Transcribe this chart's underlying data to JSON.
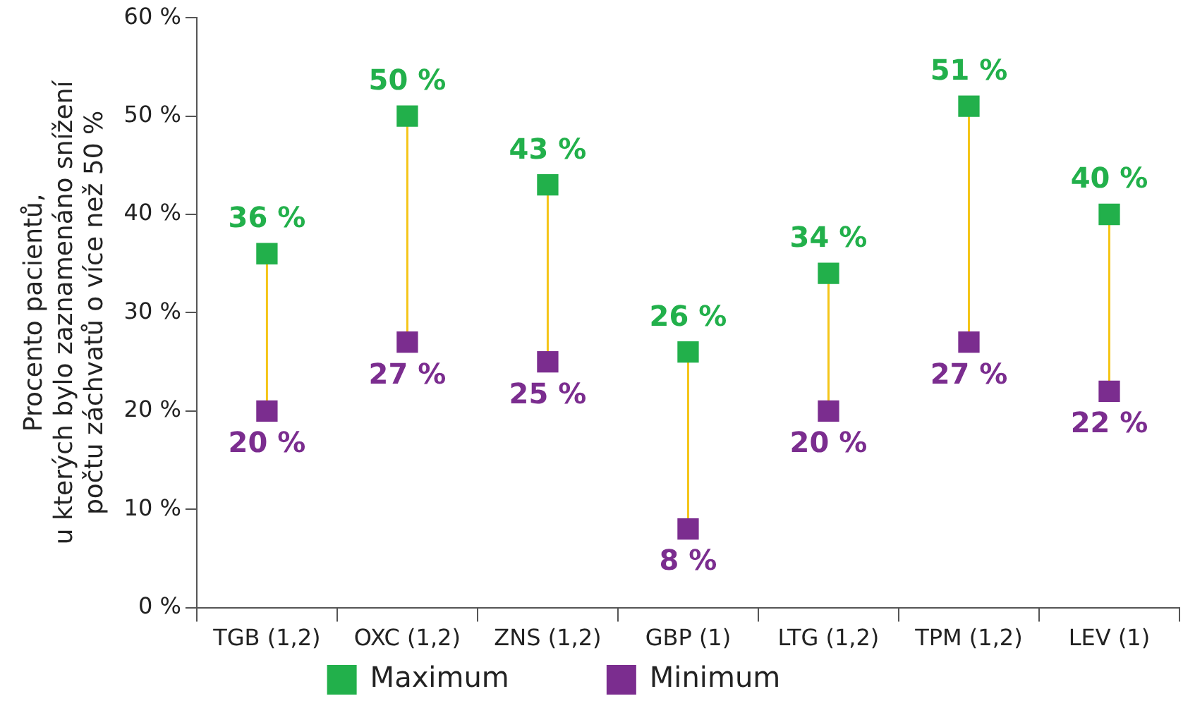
{
  "chart_data": {
    "type": "scatter",
    "ylabel": "Procento pacientů,\nu kterých bylo zaznamenáno snížení\npočtu záchvatů o více než 50 %",
    "categories": [
      "TGB (1,2)",
      "OXC (1,2)",
      "ZNS (1,2)",
      "GBP (1)",
      "LTG (1,2)",
      "TPM (1,2)",
      "LEV (1)"
    ],
    "series": [
      {
        "name": "Maximum",
        "color": "#22b04b",
        "x": [
          "TGB (1,2)",
          "OXC (1,2)",
          "ZNS (1,2)",
          "GBP (1)",
          "LTG (1,2)",
          "TPM (1,2)",
          "LEV (1)"
        ],
        "values": [
          36,
          50,
          43,
          26,
          34,
          51,
          40
        ],
        "value_labels": [
          "36 %",
          "50 %",
          "43 %",
          "26 %",
          "34 %",
          "51 %",
          "40 %"
        ]
      },
      {
        "name": "Minimum",
        "color": "#7b2d8f",
        "x": [
          "TGB (1,2)",
          "OXC (1,2)",
          "ZNS (1,2)",
          "GBP (1)",
          "LTG (1,2)",
          "TPM (1,2)",
          "LEV (1)"
        ],
        "values": [
          20,
          27,
          25,
          8,
          20,
          27,
          22
        ],
        "value_labels": [
          "20 %",
          "27 %",
          "25 %",
          "8 %",
          "20 %",
          "27 %",
          "22 %"
        ]
      }
    ],
    "ylim": [
      0,
      60
    ],
    "yticks": [
      {
        "value": 0,
        "label": "0 %"
      },
      {
        "value": 10,
        "label": "10 %"
      },
      {
        "value": 20,
        "label": "20 %"
      },
      {
        "value": 30,
        "label": "30 %"
      },
      {
        "value": 40,
        "label": "40 %"
      },
      {
        "value": 50,
        "label": "50 %"
      },
      {
        "value": 60,
        "label": "60 %"
      }
    ],
    "grid": false,
    "legend": "bottom",
    "marker": "square"
  }
}
